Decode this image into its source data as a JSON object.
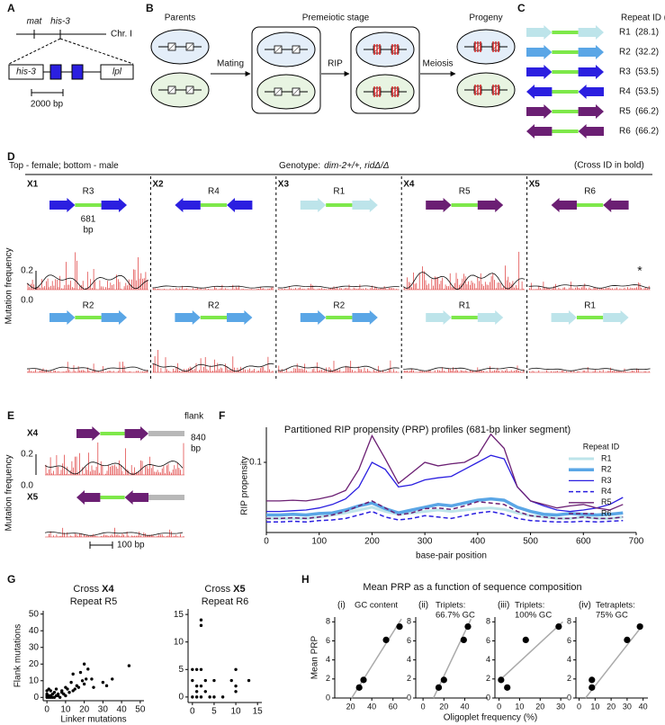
{
  "panel_labels": [
    "A",
    "B",
    "C",
    "D",
    "E",
    "F",
    "G",
    "H"
  ],
  "panel_a": {
    "loci": [
      "mat",
      "his-3"
    ],
    "chromosome": "Chr. I",
    "genes": [
      "his-3",
      "lpl"
    ],
    "scale": "2000 bp"
  },
  "panel_b": {
    "stages": [
      "Parents",
      "Premeiotic stage",
      "Progeny"
    ],
    "steps": [
      "Mating",
      "RIP",
      "Meiosis"
    ]
  },
  "panel_c": {
    "header": "Repeat ID (GC%)",
    "repeats": [
      {
        "id": "R1",
        "gc": "(28.1)",
        "color": "#bde4ea"
      },
      {
        "id": "R2",
        "gc": "(32.2)",
        "color": "#5aa6e6"
      },
      {
        "id": "R3",
        "gc": "(53.5)",
        "color": "#2b1fe0"
      },
      {
        "id": "R4",
        "gc": "(53.5)",
        "color": "#2b1fe0"
      },
      {
        "id": "R5",
        "gc": "(66.2)",
        "color": "#6b1f73"
      },
      {
        "id": "R6",
        "gc": "(66.2)",
        "color": "#6b1f73"
      }
    ]
  },
  "panel_d": {
    "sex_note": "Top - female; bottom - male",
    "genotype_label": "Genotype:",
    "genotype": "dim-2+/+, ridΔ/Δ",
    "cross_note": "(Cross ID in bold)",
    "crosses": [
      {
        "id": "X1",
        "female": "R3",
        "male": "R2"
      },
      {
        "id": "X2",
        "female": "R4",
        "male": "R2"
      },
      {
        "id": "X3",
        "female": "R1",
        "male": "R2"
      },
      {
        "id": "X4",
        "female": "R5",
        "male": "R1"
      },
      {
        "id": "X5",
        "female": "R6",
        "male": "R1"
      }
    ],
    "linker_length": "681",
    "linker_unit": "bp",
    "marker": "*",
    "ylabel": "Mutation frequency",
    "yticks": [
      "0.2",
      "0.0"
    ]
  },
  "panel_e": {
    "crosses": [
      "X4",
      "X5"
    ],
    "flank": "flank",
    "flank_length": "840",
    "flank_unit": "bp",
    "ylabel": "Mutation frequency",
    "yticks": [
      "0.2",
      "0.0"
    ],
    "scale": "100 bp"
  },
  "panel_h": {
    "title": "Mean PRP as a function of sequence composition",
    "xlabel": "Oligoplet frequency (%)",
    "ylabel": "Mean PRP"
  },
  "chart_data": [
    {
      "type": "line",
      "title": "Partitioned RIP propensity (PRP) profiles (681-bp linker segment)",
      "xlabel": "base-pair position",
      "ylabel": "RIP propensity",
      "legend_title": "Repeat ID",
      "x": [
        0,
        25,
        50,
        75,
        100,
        125,
        150,
        175,
        200,
        225,
        250,
        275,
        300,
        325,
        350,
        375,
        400,
        425,
        450,
        475,
        500,
        525,
        550,
        575,
        600,
        625,
        650,
        675
      ],
      "series": [
        {
          "name": "R1",
          "color": "#bde4ea",
          "width": 3,
          "dashed": false,
          "values": [
            0.02,
            0.02,
            0.02,
            0.02,
            0.022,
            0.025,
            0.028,
            0.032,
            0.036,
            0.03,
            0.026,
            0.028,
            0.03,
            0.032,
            0.03,
            0.032,
            0.034,
            0.035,
            0.033,
            0.028,
            0.024,
            0.022,
            0.02,
            0.02,
            0.022,
            0.02,
            0.02,
            0.022
          ]
        },
        {
          "name": "R2",
          "color": "#5aa6e6",
          "width": 3.5,
          "dashed": false,
          "values": [
            0.025,
            0.025,
            0.026,
            0.025,
            0.027,
            0.028,
            0.032,
            0.038,
            0.042,
            0.034,
            0.028,
            0.032,
            0.036,
            0.04,
            0.038,
            0.042,
            0.046,
            0.048,
            0.046,
            0.036,
            0.03,
            0.026,
            0.025,
            0.027,
            0.026,
            0.025,
            0.026,
            0.028
          ]
        },
        {
          "name": "R3",
          "color": "#2b1fe0",
          "width": 1.3,
          "dashed": false,
          "values": [
            0.03,
            0.03,
            0.031,
            0.032,
            0.035,
            0.04,
            0.048,
            0.065,
            0.1,
            0.09,
            0.065,
            0.068,
            0.075,
            0.078,
            0.08,
            0.09,
            0.1,
            0.11,
            0.105,
            0.065,
            0.045,
            0.038,
            0.032,
            0.03,
            0.032,
            0.035,
            0.04,
            0.05
          ]
        },
        {
          "name": "R4",
          "color": "#2b1fe0",
          "width": 1.5,
          "dashed": true,
          "values": [
            0.015,
            0.015,
            0.016,
            0.015,
            0.017,
            0.018,
            0.02,
            0.025,
            0.03,
            0.022,
            0.018,
            0.02,
            0.024,
            0.022,
            0.02,
            0.024,
            0.028,
            0.03,
            0.026,
            0.02,
            0.017,
            0.016,
            0.015,
            0.015,
            0.016,
            0.015,
            0.016,
            0.017
          ]
        },
        {
          "name": "R5",
          "color": "#6b1f73",
          "width": 1.3,
          "dashed": false,
          "values": [
            0.045,
            0.045,
            0.046,
            0.045,
            0.048,
            0.052,
            0.06,
            0.09,
            0.138,
            0.105,
            0.07,
            0.085,
            0.1,
            0.095,
            0.098,
            0.1,
            0.11,
            0.14,
            0.12,
            0.065,
            0.045,
            0.04,
            0.035,
            0.038,
            0.04,
            0.035,
            0.032,
            0.04
          ]
        },
        {
          "name": "R6",
          "color": "#6b1f73",
          "width": 1.5,
          "dashed": true,
          "values": [
            0.02,
            0.02,
            0.021,
            0.02,
            0.022,
            0.025,
            0.03,
            0.038,
            0.045,
            0.035,
            0.025,
            0.028,
            0.034,
            0.035,
            0.033,
            0.038,
            0.044,
            0.042,
            0.04,
            0.03,
            0.024,
            0.022,
            0.02,
            0.02,
            0.022,
            0.02,
            0.02,
            0.022
          ]
        }
      ],
      "xlim": [
        0,
        700
      ],
      "ylim": [
        0,
        0.15
      ],
      "xticks": [
        0,
        100,
        200,
        300,
        400,
        500,
        600,
        700
      ],
      "yticks": [
        0.1
      ]
    },
    {
      "type": "scatter",
      "title": "Cross",
      "cross": "X4",
      "subtitle": "Repeat R5",
      "xlabel": "Linker mutations",
      "ylabel": "Flank mutations",
      "x": [
        0,
        1,
        2,
        3,
        4,
        0,
        1,
        2,
        0,
        3,
        5,
        6,
        0,
        2,
        4,
        6,
        7,
        8,
        9,
        10,
        10,
        11,
        12,
        13,
        14,
        15,
        16,
        17,
        18,
        19,
        20,
        21,
        20,
        22,
        24,
        25,
        30,
        32,
        35,
        44,
        1,
        5,
        8,
        14
      ],
      "y": [
        0,
        0,
        0,
        0,
        0,
        1,
        1,
        1,
        2,
        2,
        1,
        2,
        4,
        4,
        3,
        1,
        0,
        3,
        2,
        1,
        6,
        5,
        3,
        9,
        4,
        5,
        7,
        6,
        15,
        10,
        8,
        11,
        20,
        17,
        11,
        6,
        9,
        7,
        11,
        19,
        5,
        5,
        4,
        14
      ],
      "xlim": [
        -2,
        52
      ],
      "ylim": [
        -2,
        52
      ],
      "xticks": [
        0,
        10,
        20,
        30,
        40,
        50
      ],
      "yticks": [
        0,
        10,
        20,
        30,
        40,
        50
      ]
    },
    {
      "type": "scatter",
      "title": "Cross",
      "cross": "X5",
      "subtitle": "Repeat R6",
      "x": [
        0,
        0,
        0,
        1,
        2,
        2,
        2,
        1,
        1,
        2,
        3,
        3,
        1,
        2,
        4,
        5,
        7,
        10,
        10,
        10,
        13,
        9,
        5
      ],
      "y": [
        0,
        3,
        5,
        5,
        14,
        13,
        5,
        2,
        1,
        2,
        1,
        3,
        0,
        0,
        0,
        3,
        0,
        5,
        2,
        1,
        3,
        3,
        0
      ],
      "xlim": [
        -1,
        16
      ],
      "ylim": [
        -1,
        16
      ],
      "xticks": [
        0,
        5,
        10,
        15
      ],
      "yticks": [
        0,
        5,
        10,
        15
      ]
    },
    {
      "type": "scatter",
      "label": "(i)",
      "subtitle": [
        "GC content"
      ],
      "x": [
        28.1,
        32.2,
        53.5,
        66.2
      ],
      "y": [
        1.1,
        1.9,
        6.1,
        7.5
      ],
      "fit": {
        "x": [
          21,
          68
        ],
        "y": [
          0,
          8.3
        ]
      },
      "xlim": [
        5,
        73
      ],
      "ylim": [
        0,
        8.5
      ],
      "xticks": [
        20,
        40,
        60
      ],
      "yticks": [
        0,
        2,
        4,
        6,
        8
      ]
    },
    {
      "type": "scatter",
      "label": "(ii)",
      "subtitle": [
        "Triplets:",
        "66.7% GC"
      ],
      "x": [
        15,
        20,
        39,
        43
      ],
      "y": [
        1.1,
        1.9,
        6.1,
        7.5
      ],
      "fit": {
        "x": [
          10,
          46
        ],
        "y": [
          0,
          8.3
        ]
      },
      "xlim": [
        -7,
        62
      ],
      "ylim": [
        0,
        8.5
      ],
      "xticks": [
        0,
        20,
        40
      ],
      "yticks": [
        0,
        2,
        4,
        6,
        8
      ]
    },
    {
      "type": "scatter",
      "label": "(iii)",
      "subtitle": [
        "Triplets:",
        "100% GC"
      ],
      "x": [
        1,
        4,
        13,
        29
      ],
      "y": [
        1.9,
        1.1,
        6.1,
        7.5
      ],
      "fit": {
        "x": [
          0,
          31
        ],
        "y": [
          1.8,
          8
        ]
      },
      "xlim": [
        -2,
        33
      ],
      "ylim": [
        0,
        8.5
      ],
      "xticks": [
        0,
        10,
        20,
        30
      ],
      "yticks": [
        0,
        2,
        4,
        6,
        8
      ]
    },
    {
      "type": "scatter",
      "label": "(iv)",
      "subtitle": [
        "Tetraplets:",
        "75% GC"
      ],
      "x": [
        8,
        8,
        30,
        38
      ],
      "y": [
        1.1,
        1.9,
        6.1,
        7.5
      ],
      "fit": {
        "x": [
          4,
          40
        ],
        "y": [
          0,
          7.7
        ]
      },
      "xlim": [
        -2,
        43
      ],
      "ylim": [
        0,
        8.5
      ],
      "xticks": [
        0,
        10,
        20,
        30,
        40
      ],
      "yticks": [
        0,
        2,
        4,
        6,
        8
      ]
    }
  ]
}
